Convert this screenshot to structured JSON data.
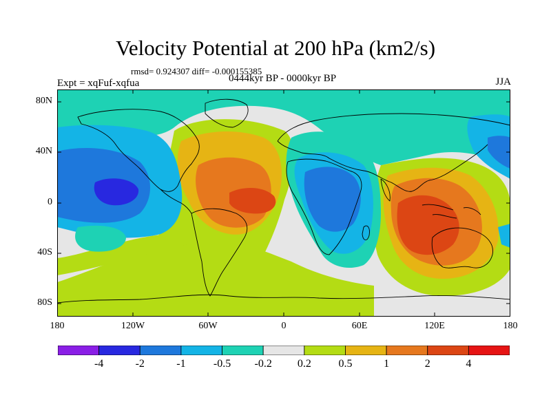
{
  "title": "Velocity Potential at 200 hPa (km2/s)",
  "stats": "rmsd= 0.924307 diff= -0.000155385",
  "experiment": "Expt = xqFuf-xqfua",
  "period": "0444kyr BP - 0000kyr BP",
  "season": "JJA",
  "lat_labels": [
    "80N",
    "40N",
    "0",
    "40S",
    "80S"
  ],
  "lon_labels": [
    "180",
    "120W",
    "60W",
    "0",
    "60E",
    "120E",
    "180"
  ],
  "colorbar": {
    "labels": [
      "-4",
      "-2",
      "-1",
      "-0.5",
      "-0.2",
      "0.2",
      "0.5",
      "1",
      "2",
      "4"
    ],
    "colors": [
      "#8a1ee6",
      "#2828e0",
      "#1e78dc",
      "#14b4e6",
      "#1ed2b4",
      "#e6e6e6",
      "#b4dc14",
      "#e6b414",
      "#e6781e",
      "#dc4614",
      "#e61414"
    ]
  },
  "fields": {
    "background": "#e6e6e6",
    "neg_light": "#1ed2b4",
    "neg_mid": "#14b4e6",
    "neg_dark": "#1e78dc",
    "neg_core": "#2828e0",
    "pos_light": "#b4dc14",
    "pos_mid": "#e6b414",
    "pos_dark": "#e6781e",
    "pos_core": "#dc4614"
  }
}
